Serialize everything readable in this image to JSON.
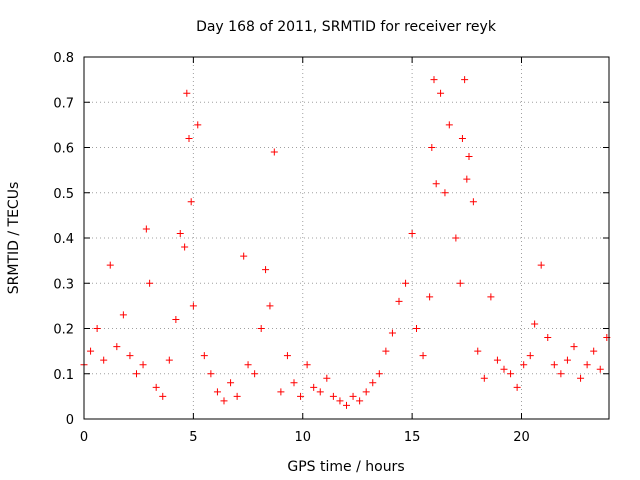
{
  "chart_data": {
    "type": "scatter",
    "title": "Day 168 of 2011, SRMTID for receiver reyk",
    "xlabel": "GPS time / hours",
    "ylabel": "SRMTID / TECUs",
    "xlim": [
      0,
      24
    ],
    "ylim": [
      0,
      0.8
    ],
    "xticks": [
      0,
      5,
      10,
      15,
      20
    ],
    "xtick_labels": [
      "0",
      "5",
      "10",
      "15",
      "20"
    ],
    "yticks": [
      0,
      0.1,
      0.2,
      0.3,
      0.4,
      0.5,
      0.6,
      0.7,
      0.8
    ],
    "ytick_labels": [
      "0",
      "0.1",
      "0.2",
      "0.3",
      "0.4",
      "0.5",
      "0.6",
      "0.7",
      "0.8"
    ],
    "grid": true,
    "marker": "+",
    "color": "#ff0000",
    "series": [
      {
        "name": "reyk",
        "x": [
          0.0,
          0.3,
          0.6,
          0.9,
          1.2,
          1.5,
          1.8,
          2.1,
          2.4,
          2.7,
          2.85,
          3.0,
          3.3,
          3.6,
          3.9,
          4.2,
          4.4,
          4.6,
          4.7,
          4.8,
          4.9,
          5.0,
          5.2,
          5.5,
          5.8,
          6.1,
          6.4,
          6.7,
          7.0,
          7.3,
          7.5,
          7.8,
          8.1,
          8.3,
          8.5,
          8.7,
          9.0,
          9.3,
          9.6,
          9.9,
          10.2,
          10.5,
          10.8,
          11.1,
          11.4,
          11.7,
          12.0,
          12.3,
          12.6,
          12.9,
          13.2,
          13.5,
          13.8,
          14.1,
          14.4,
          14.7,
          15.0,
          15.2,
          15.5,
          15.8,
          15.9,
          16.0,
          16.1,
          16.3,
          16.5,
          16.7,
          17.0,
          17.2,
          17.3,
          17.4,
          17.5,
          17.6,
          17.8,
          18.0,
          18.3,
          18.6,
          18.9,
          19.2,
          19.5,
          19.8,
          20.1,
          20.4,
          20.6,
          20.9,
          21.2,
          21.5,
          21.8,
          22.1,
          22.4,
          22.7,
          23.0,
          23.3,
          23.6,
          23.9
        ],
        "y": [
          0.12,
          0.15,
          0.2,
          0.13,
          0.34,
          0.16,
          0.23,
          0.14,
          0.1,
          0.12,
          0.42,
          0.3,
          0.07,
          0.05,
          0.13,
          0.22,
          0.41,
          0.38,
          0.72,
          0.62,
          0.48,
          0.25,
          0.65,
          0.14,
          0.1,
          0.06,
          0.04,
          0.08,
          0.05,
          0.36,
          0.12,
          0.1,
          0.2,
          0.33,
          0.25,
          0.59,
          0.06,
          0.14,
          0.08,
          0.05,
          0.12,
          0.07,
          0.06,
          0.09,
          0.05,
          0.04,
          0.03,
          0.05,
          0.04,
          0.06,
          0.08,
          0.1,
          0.15,
          0.19,
          0.26,
          0.3,
          0.41,
          0.2,
          0.14,
          0.27,
          0.6,
          0.75,
          0.52,
          0.72,
          0.5,
          0.65,
          0.4,
          0.3,
          0.62,
          0.75,
          0.53,
          0.58,
          0.48,
          0.15,
          0.09,
          0.27,
          0.13,
          0.11,
          0.1,
          0.07,
          0.12,
          0.14,
          0.21,
          0.34,
          0.18,
          0.12,
          0.1,
          0.13,
          0.16,
          0.09,
          0.12,
          0.15,
          0.11,
          0.18
        ]
      }
    ]
  }
}
